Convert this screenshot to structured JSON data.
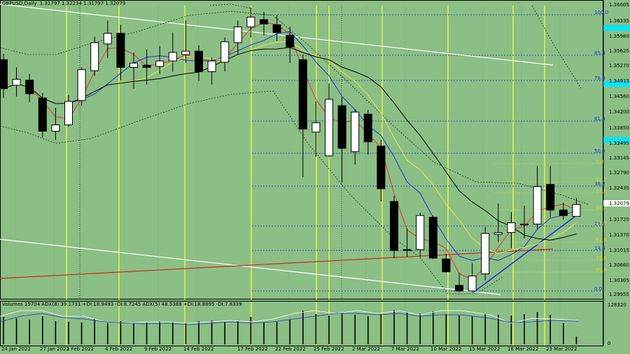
{
  "header": {
    "symbol": "GBPUSD,Daily",
    "ohlc": "1.31797 1.32234 1.31797 1.32079"
  },
  "indicator_header": {
    "label": "Volumes 15704  ADX(8) 39.1731 +DI:18.9493 -DI:8.7245  ADX(5) 48.5388 +DI:18.8895 -DI:7.8339",
    "max_value": "128320",
    "zero_value": "0"
  },
  "colors": {
    "background": "#8bbf85",
    "bull": "#ffffff",
    "bear": "#000000",
    "ma_red": "#e8332a",
    "ma_blue": "#1b35d8",
    "ma_yellow": "#e6e64a",
    "ma_black": "#000000",
    "channel": "#ffffff",
    "long_ma": "#d4231d",
    "session_line": "#ffff33",
    "current_price_bg": "#ffffff"
  },
  "price_axis": {
    "labels": [
      "1.36605",
      "1.36335",
      "1.35980",
      "1.35625",
      "1.35270",
      "1.34915",
      "1.34560",
      "1.34200",
      "1.33850",
      "1.33495",
      "1.33145",
      "1.32790",
      "1.32435",
      "1.32079",
      "1.31725",
      "1.31370",
      "1.31015",
      "1.30660",
      "1.30305",
      "1.29955"
    ],
    "current_price": "1.32079"
  },
  "date_axis": {
    "labels": [
      "24 Jan 2022",
      "27 Jan 2022",
      "1 Feb 2022",
      "4 Feb 2022",
      "9 Feb 2022",
      "14 Feb 2022",
      "17 Feb 2022",
      "22 Feb 2022",
      "25 Feb 2022",
      "2 Mar 2022",
      "7 Mar 2022",
      "10 Mar 2022",
      "15 Mar 2022",
      "18 Mar 2022",
      "23 Mar 2022"
    ]
  },
  "fibo_main": {
    "levels": [
      "100.0",
      "85.4",
      "78.6",
      "61.8",
      "50.0",
      "38.2",
      "23.6",
      "14.6",
      "0.0"
    ]
  },
  "fibo_small": {
    "levels": [
      "0.0",
      "38.2",
      "23.6",
      "38.2",
      "23.6",
      "61.8",
      "78.6",
      "85.4"
    ]
  },
  "chart_data": {
    "type": "candlestick",
    "symbol": "GBPUSD",
    "timeframe": "Daily",
    "ylim": [
      1.2985,
      1.3675
    ],
    "candles": [
      {
        "o": 1.3548,
        "h": 1.3562,
        "l": 1.3458,
        "c": 1.348
      },
      {
        "o": 1.3488,
        "h": 1.353,
        "l": 1.3462,
        "c": 1.3502
      },
      {
        "o": 1.35,
        "h": 1.3515,
        "l": 1.3448,
        "c": 1.3468
      },
      {
        "o": 1.3458,
        "h": 1.347,
        "l": 1.3365,
        "c": 1.338
      },
      {
        "o": 1.338,
        "h": 1.3435,
        "l": 1.336,
        "c": 1.3395
      },
      {
        "o": 1.3395,
        "h": 1.3465,
        "l": 1.339,
        "c": 1.345
      },
      {
        "o": 1.3452,
        "h": 1.353,
        "l": 1.344,
        "c": 1.3525
      },
      {
        "o": 1.3522,
        "h": 1.3602,
        "l": 1.351,
        "c": 1.3588
      },
      {
        "o": 1.3585,
        "h": 1.364,
        "l": 1.3552,
        "c": 1.361
      },
      {
        "o": 1.361,
        "h": 1.363,
        "l": 1.35,
        "c": 1.353
      },
      {
        "o": 1.353,
        "h": 1.3565,
        "l": 1.348,
        "c": 1.354
      },
      {
        "o": 1.3535,
        "h": 1.3572,
        "l": 1.349,
        "c": 1.353
      },
      {
        "o": 1.3532,
        "h": 1.358,
        "l": 1.3515,
        "c": 1.3545
      },
      {
        "o": 1.3545,
        "h": 1.3612,
        "l": 1.352,
        "c": 1.3565
      },
      {
        "o": 1.356,
        "h": 1.364,
        "l": 1.354,
        "c": 1.3568
      },
      {
        "o": 1.3568,
        "h": 1.3582,
        "l": 1.3498,
        "c": 1.352
      },
      {
        "o": 1.352,
        "h": 1.3553,
        "l": 1.349,
        "c": 1.3545
      },
      {
        "o": 1.3542,
        "h": 1.36,
        "l": 1.352,
        "c": 1.359
      },
      {
        "o": 1.3588,
        "h": 1.364,
        "l": 1.356,
        "c": 1.3625
      },
      {
        "o": 1.3625,
        "h": 1.367,
        "l": 1.36,
        "c": 1.3648
      },
      {
        "o": 1.3642,
        "h": 1.366,
        "l": 1.3605,
        "c": 1.3632
      },
      {
        "o": 1.363,
        "h": 1.3653,
        "l": 1.3592,
        "c": 1.3612
      },
      {
        "o": 1.3605,
        "h": 1.3625,
        "l": 1.354,
        "c": 1.3578
      },
      {
        "o": 1.3548,
        "h": 1.356,
        "l": 1.3272,
        "c": 1.3385
      },
      {
        "o": 1.3378,
        "h": 1.345,
        "l": 1.332,
        "c": 1.34
      },
      {
        "o": 1.3322,
        "h": 1.3492,
        "l": 1.332,
        "c": 1.3455
      },
      {
        "o": 1.344,
        "h": 1.346,
        "l": 1.326,
        "c": 1.334
      },
      {
        "o": 1.3332,
        "h": 1.3432,
        "l": 1.3302,
        "c": 1.3425
      },
      {
        "o": 1.342,
        "h": 1.343,
        "l": 1.3325,
        "c": 1.3355
      },
      {
        "o": 1.3345,
        "h": 1.336,
        "l": 1.3215,
        "c": 1.3245
      },
      {
        "o": 1.3215,
        "h": 1.3228,
        "l": 1.3082,
        "c": 1.31
      },
      {
        "o": 1.3102,
        "h": 1.3152,
        "l": 1.3085,
        "c": 1.31
      },
      {
        "o": 1.3102,
        "h": 1.3188,
        "l": 1.3085,
        "c": 1.3182
      },
      {
        "o": 1.3178,
        "h": 1.3182,
        "l": 1.308,
        "c": 1.3082
      },
      {
        "o": 1.308,
        "h": 1.3092,
        "l": 1.3048,
        "c": 1.305
      },
      {
        "o": 1.3018,
        "h": 1.3048,
        "l": 1.3002,
        "c": 1.3005
      },
      {
        "o": 1.3005,
        "h": 1.307,
        "l": 1.3002,
        "c": 1.304
      },
      {
        "o": 1.3045,
        "h": 1.3155,
        "l": 1.303,
        "c": 1.314
      },
      {
        "o": 1.3138,
        "h": 1.321,
        "l": 1.312,
        "c": 1.3142
      },
      {
        "o": 1.3142,
        "h": 1.319,
        "l": 1.3105,
        "c": 1.3165
      },
      {
        "o": 1.316,
        "h": 1.3205,
        "l": 1.3128,
        "c": 1.3162
      },
      {
        "o": 1.3162,
        "h": 1.3298,
        "l": 1.315,
        "c": 1.325
      },
      {
        "o": 1.3255,
        "h": 1.3298,
        "l": 1.3178,
        "c": 1.3195
      },
      {
        "o": 1.3195,
        "h": 1.3212,
        "l": 1.3172,
        "c": 1.3182
      },
      {
        "o": 1.318,
        "h": 1.3223,
        "l": 1.318,
        "c": 1.3208
      }
    ],
    "volumes": [
      0.78,
      0.74,
      0.7,
      0.8,
      0.66,
      0.64,
      0.62,
      0.72,
      0.6,
      0.66,
      0.63,
      0.62,
      0.66,
      0.64,
      0.62,
      0.66,
      0.68,
      0.64,
      0.66,
      0.78,
      0.62,
      0.64,
      0.7,
      0.96,
      0.86,
      0.82,
      0.9,
      0.84,
      0.8,
      0.86,
      0.98,
      0.92,
      0.88,
      0.94,
      0.86,
      0.82,
      0.8,
      0.88,
      0.84,
      0.82,
      0.86,
      0.92,
      0.84,
      0.6,
      0.22
    ],
    "volume_max": 128320
  }
}
